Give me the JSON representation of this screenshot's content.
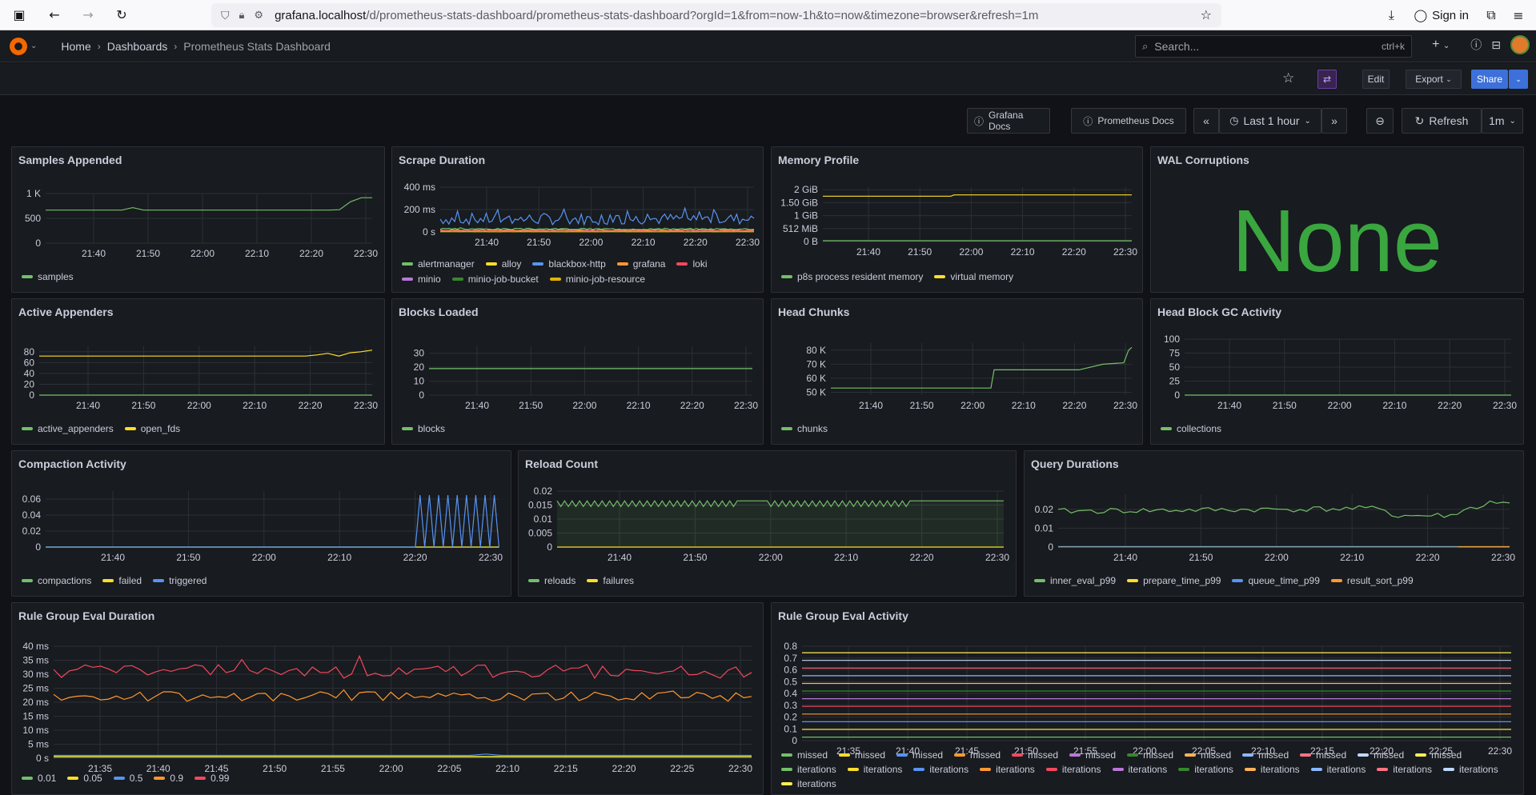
{
  "browser": {
    "url_host": "grafana.localhost",
    "url_path": "/d/prometheus-stats-dashboard/prometheus-stats-dashboard?orgId=1&from=now-1h&to=now&timezone=browser&refresh=1m",
    "signin_label": "Sign in"
  },
  "nav": {
    "breadcrumbs": [
      "Home",
      "Dashboards",
      "Prometheus Stats Dashboard"
    ],
    "search_placeholder": "Search...",
    "search_shortcut": "ctrl+k",
    "plus_label": "+"
  },
  "toolbar": {
    "edit_label": "Edit",
    "export_label": "Export",
    "share_label": "Share"
  },
  "controls": {
    "link1": "Grafana Docs",
    "link2": "Prometheus Docs",
    "time_range": "Last 1 hour",
    "refresh_label": "Refresh",
    "refresh_interval": "1m"
  },
  "colors": {
    "green": "#73bf69",
    "yellow": "#fade2a",
    "blue": "#5794f2",
    "orange": "#ff9830",
    "red": "#f2495c",
    "purple": "#b877d9",
    "darkgreen": "#37872d",
    "darkyellow": "#e0b400"
  },
  "panels": {
    "samples": {
      "title": "Samples Appended",
      "chart_data": {
        "type": "line",
        "x_ticks": [
          "21:40",
          "21:50",
          "22:00",
          "22:10",
          "22:20",
          "22:30"
        ],
        "y_ticks": [
          "0",
          "500",
          "1 K"
        ],
        "ylim": [
          0,
          1200
        ],
        "series": [
          {
            "name": "samples",
            "values": [
              800,
              800,
              800,
              800,
              800,
              800,
              800,
              800,
              860,
              800,
              800,
              800,
              800,
              800,
              800,
              800,
              800,
              800,
              800,
              800,
              800,
              800,
              800,
              800,
              800,
              800,
              800,
              810,
              1000,
              1100,
              1100
            ]
          }
        ]
      }
    },
    "scrape": {
      "title": "Scrape Duration",
      "chart_data": {
        "type": "line",
        "x_ticks": [
          "21:40",
          "21:50",
          "22:00",
          "22:10",
          "22:20",
          "22:30"
        ],
        "y_ticks": [
          "0 s",
          "200 ms",
          "400 ms"
        ],
        "ylim": [
          0,
          450
        ],
        "series": [
          {
            "name": "alertmanager",
            "values": []
          },
          {
            "name": "alloy",
            "values": []
          },
          {
            "name": "blackbox-http",
            "values": []
          },
          {
            "name": "grafana",
            "values": []
          },
          {
            "name": "loki",
            "values": []
          },
          {
            "name": "minio",
            "values": []
          },
          {
            "name": "minio-job-bucket",
            "values": []
          },
          {
            "name": "minio-job-resource",
            "values": []
          }
        ]
      }
    },
    "memory": {
      "title": "Memory Profile",
      "chart_data": {
        "type": "line",
        "x_ticks": [
          "21:40",
          "21:50",
          "22:00",
          "22:10",
          "22:20",
          "22:30"
        ],
        "y_ticks": [
          "0 B",
          "512 MiB",
          "1 GiB",
          "1.50 GiB",
          "2 GiB"
        ],
        "ylim": [
          0,
          2.1
        ],
        "series": [
          {
            "name": "p8s process resident memory",
            "values": [
              0.05,
              0.05,
              0.05
            ]
          },
          {
            "name": "virtual memory",
            "values": [
              1.75,
              1.75,
              1.8
            ]
          }
        ]
      }
    },
    "wal": {
      "title": "WAL Corruptions",
      "value": "None"
    },
    "appenders": {
      "title": "Active Appenders",
      "chart_data": {
        "type": "line",
        "x_ticks": [
          "21:40",
          "21:50",
          "22:00",
          "22:10",
          "22:20",
          "22:30"
        ],
        "y_ticks": [
          "0",
          "20",
          "40",
          "60",
          "80"
        ],
        "ylim": [
          0,
          90
        ],
        "series": [
          {
            "name": "active_appenders",
            "values": [
              0,
              0
            ]
          },
          {
            "name": "open_fds",
            "values": [
              72,
              72,
              72,
              72,
              72,
              72,
              72,
              72,
              72,
              72,
              72,
              72,
              72,
              72,
              72,
              72,
              72,
              72,
              72,
              72,
              72,
              72,
              72,
              72,
              72,
              74,
              77,
              72,
              78,
              80,
              83
            ]
          }
        ]
      }
    },
    "blocks": {
      "title": "Blocks Loaded",
      "chart_data": {
        "type": "line",
        "x_ticks": [
          "21:40",
          "21:50",
          "22:00",
          "22:10",
          "22:20",
          "22:30"
        ],
        "y_ticks": [
          "0",
          "10",
          "20",
          "30"
        ],
        "ylim": [
          0,
          35
        ],
        "series": [
          {
            "name": "blocks",
            "values": [
              19,
              19
            ]
          }
        ]
      }
    },
    "chunks": {
      "title": "Head Chunks",
      "chart_data": {
        "type": "line",
        "x_ticks": [
          "21:40",
          "21:50",
          "22:00",
          "22:10",
          "22:20",
          "22:30"
        ],
        "y_ticks": [
          "50 K",
          "60 K",
          "70 K",
          "80 K"
        ],
        "ylim": [
          48000,
          85000
        ],
        "series": [
          {
            "name": "chunks",
            "values": []
          }
        ]
      }
    },
    "gc": {
      "title": "Head Block GC Activity",
      "chart_data": {
        "type": "line",
        "x_ticks": [
          "21:40",
          "21:50",
          "22:00",
          "22:10",
          "22:20",
          "22:30"
        ],
        "y_ticks": [
          "0",
          "25",
          "50",
          "75",
          "100"
        ],
        "ylim": [
          0,
          100
        ],
        "series": [
          {
            "name": "collections",
            "values": [
              0,
              0
            ]
          }
        ]
      }
    },
    "compaction": {
      "title": "Compaction Activity",
      "chart_data": {
        "type": "line",
        "x_ticks": [
          "21:40",
          "21:50",
          "22:00",
          "22:10",
          "22:20",
          "22:30"
        ],
        "y_ticks": [
          "0",
          "0.02",
          "0.04",
          "0.06"
        ],
        "ylim": [
          0,
          0.07
        ],
        "series": [
          {
            "name": "compactions",
            "values": []
          },
          {
            "name": "failed",
            "values": []
          },
          {
            "name": "triggered",
            "values": []
          }
        ]
      }
    },
    "reload": {
      "title": "Reload Count",
      "chart_data": {
        "type": "line",
        "x_ticks": [
          "21:40",
          "21:50",
          "22:00",
          "22:10",
          "22:20",
          "22:30"
        ],
        "y_ticks": [
          "0",
          "0.005",
          "0.01",
          "0.015",
          "0.02"
        ],
        "ylim": [
          0,
          0.02
        ],
        "series": [
          {
            "name": "reloads",
            "values": []
          },
          {
            "name": "failures",
            "values": []
          }
        ]
      }
    },
    "query": {
      "title": "Query Durations",
      "chart_data": {
        "type": "line",
        "x_ticks": [
          "21:40",
          "21:50",
          "22:00",
          "22:10",
          "22:20",
          "22:30"
        ],
        "y_ticks": [
          "0",
          "0.01",
          "0.02"
        ],
        "ylim": [
          0,
          0.028
        ],
        "series": [
          {
            "name": "inner_eval_p99",
            "values": []
          },
          {
            "name": "prepare_time_p99",
            "values": []
          },
          {
            "name": "queue_time_p99",
            "values": []
          },
          {
            "name": "result_sort_p99",
            "values": []
          }
        ]
      }
    },
    "rgdur": {
      "title": "Rule Group Eval Duration",
      "chart_data": {
        "type": "line",
        "x_ticks": [
          "21:35",
          "21:40",
          "21:45",
          "21:50",
          "21:55",
          "22:00",
          "22:05",
          "22:10",
          "22:15",
          "22:20",
          "22:25",
          "22:30"
        ],
        "y_ticks": [
          "0 s",
          "5 ms",
          "10 ms",
          "15 ms",
          "20 ms",
          "25 ms",
          "30 ms",
          "35 ms",
          "40 ms"
        ],
        "ylim": [
          0,
          40
        ],
        "series": [
          {
            "name": "0.01",
            "values": []
          },
          {
            "name": "0.05",
            "values": []
          },
          {
            "name": "0.5",
            "values": []
          },
          {
            "name": "0.9",
            "values": []
          },
          {
            "name": "0.99",
            "values": []
          }
        ]
      }
    },
    "rgact": {
      "title": "Rule Group Eval Activity",
      "chart_data": {
        "type": "line",
        "x_ticks": [
          "21:35",
          "21:40",
          "21:45",
          "21:50",
          "21:55",
          "22:00",
          "22:05",
          "22:10",
          "22:15",
          "22:20",
          "22:25",
          "22:30"
        ],
        "y_ticks": [
          "0",
          "0.1",
          "0.2",
          "0.3",
          "0.4",
          "0.5",
          "0.6",
          "0.7",
          "0.8"
        ],
        "ylim": [
          0,
          0.8
        ],
        "legend": [
          "missed",
          "missed",
          "missed",
          "missed",
          "missed",
          "missed",
          "missed",
          "missed",
          "missed",
          "missed",
          "missed",
          "missed",
          "iterations",
          "iterations",
          "iterations",
          "iterations",
          "iterations",
          "iterations",
          "iterations",
          "iterations",
          "iterations",
          "iterations",
          "iterations",
          "iterations"
        ]
      }
    }
  }
}
